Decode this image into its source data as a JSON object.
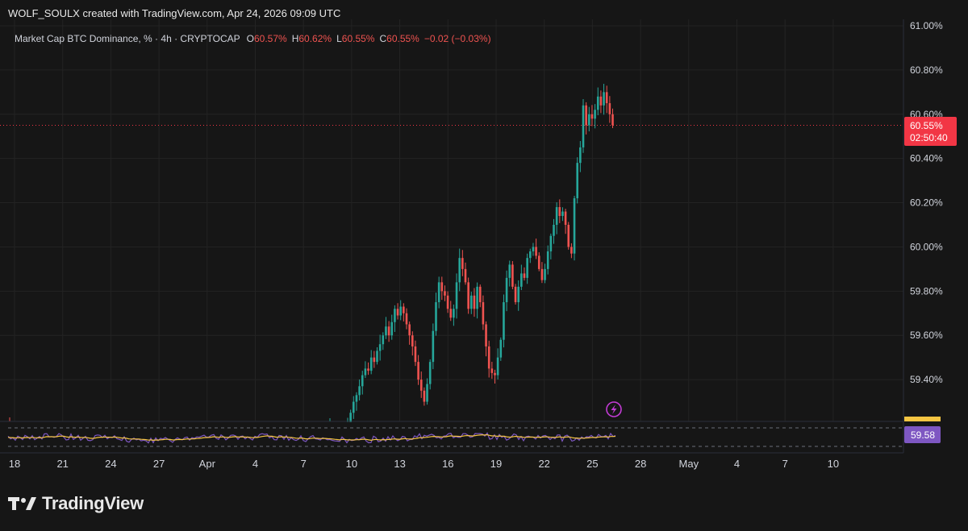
{
  "header": {
    "credit": "WOLF_SOULX created with TradingView.com, Apr 24, 2026 09:09 UTC"
  },
  "legend": {
    "symbol": "Market Cap BTC Dominance, % · 4h · CRYPTOCAP",
    "o_label": "O",
    "o_value": "60.57%",
    "h_label": "H",
    "h_value": "60.62%",
    "l_label": "L",
    "l_value": "60.55%",
    "c_label": "C",
    "c_value": "60.55%",
    "change": "−0.02 (−0.03%)"
  },
  "price_axis": {
    "ticks": [
      "61.00%",
      "60.80%",
      "60.60%",
      "60.40%",
      "60.20%",
      "60.00%",
      "59.80%",
      "59.60%",
      "59.40%"
    ],
    "current_price": "60.55%",
    "countdown": "02:50:40"
  },
  "indicator": {
    "value": "59.58",
    "line_color": "#7e57c2",
    "signal_color": "#f5c542"
  },
  "time_axis": {
    "ticks": [
      "18",
      "21",
      "24",
      "27",
      "Apr",
      "4",
      "7",
      "10",
      "13",
      "16",
      "19",
      "22",
      "25",
      "28",
      "May",
      "4",
      "7",
      "10"
    ]
  },
  "footer": {
    "brand": "TradingView"
  },
  "colors": {
    "up": "#26a69a",
    "down": "#ef5350",
    "background": "#161616",
    "grid": "#232323",
    "price_badge": "#f23645",
    "indicator_badge": "#7e57c2",
    "event_icon": "#c23bd4"
  },
  "chart_data": {
    "type": "candlestick",
    "title": "Market Cap BTC Dominance, % · 4h · CRYPTOCAP",
    "timeframe": "4h",
    "ylim": [
      59.2,
      61.0
    ],
    "y_unit": "%",
    "grid": true,
    "current_price": 60.55,
    "closes": [
      59.2,
      59.25,
      59.3,
      59.33,
      59.37,
      59.42,
      59.45,
      59.44,
      59.5,
      59.48,
      59.53,
      59.56,
      59.6,
      59.64,
      59.6,
      59.66,
      59.72,
      59.69,
      59.73,
      59.7,
      59.65,
      59.6,
      59.55,
      59.48,
      59.4,
      59.35,
      59.3,
      59.38,
      59.48,
      59.62,
      59.75,
      59.84,
      59.8,
      59.78,
      59.72,
      59.68,
      59.72,
      59.84,
      59.95,
      59.9,
      59.84,
      59.72,
      59.78,
      59.72,
      59.82,
      59.75,
      59.65,
      59.55,
      59.45,
      59.43,
      59.42,
      59.5,
      59.58,
      59.75,
      59.86,
      59.92,
      59.82,
      59.75,
      59.82,
      59.88,
      59.86,
      59.95,
      59.98,
      60.0,
      59.96,
      59.9,
      59.85,
      59.9,
      59.98,
      60.05,
      60.1,
      60.18,
      60.14,
      60.16,
      60.1,
      60.0,
      59.97,
      60.22,
      60.38,
      60.45,
      60.64,
      60.55,
      60.6,
      60.58,
      60.62,
      60.68,
      60.64,
      60.7,
      60.65,
      60.6,
      60.55
    ],
    "indicator": {
      "name": "",
      "last_value": 59.58
    }
  }
}
